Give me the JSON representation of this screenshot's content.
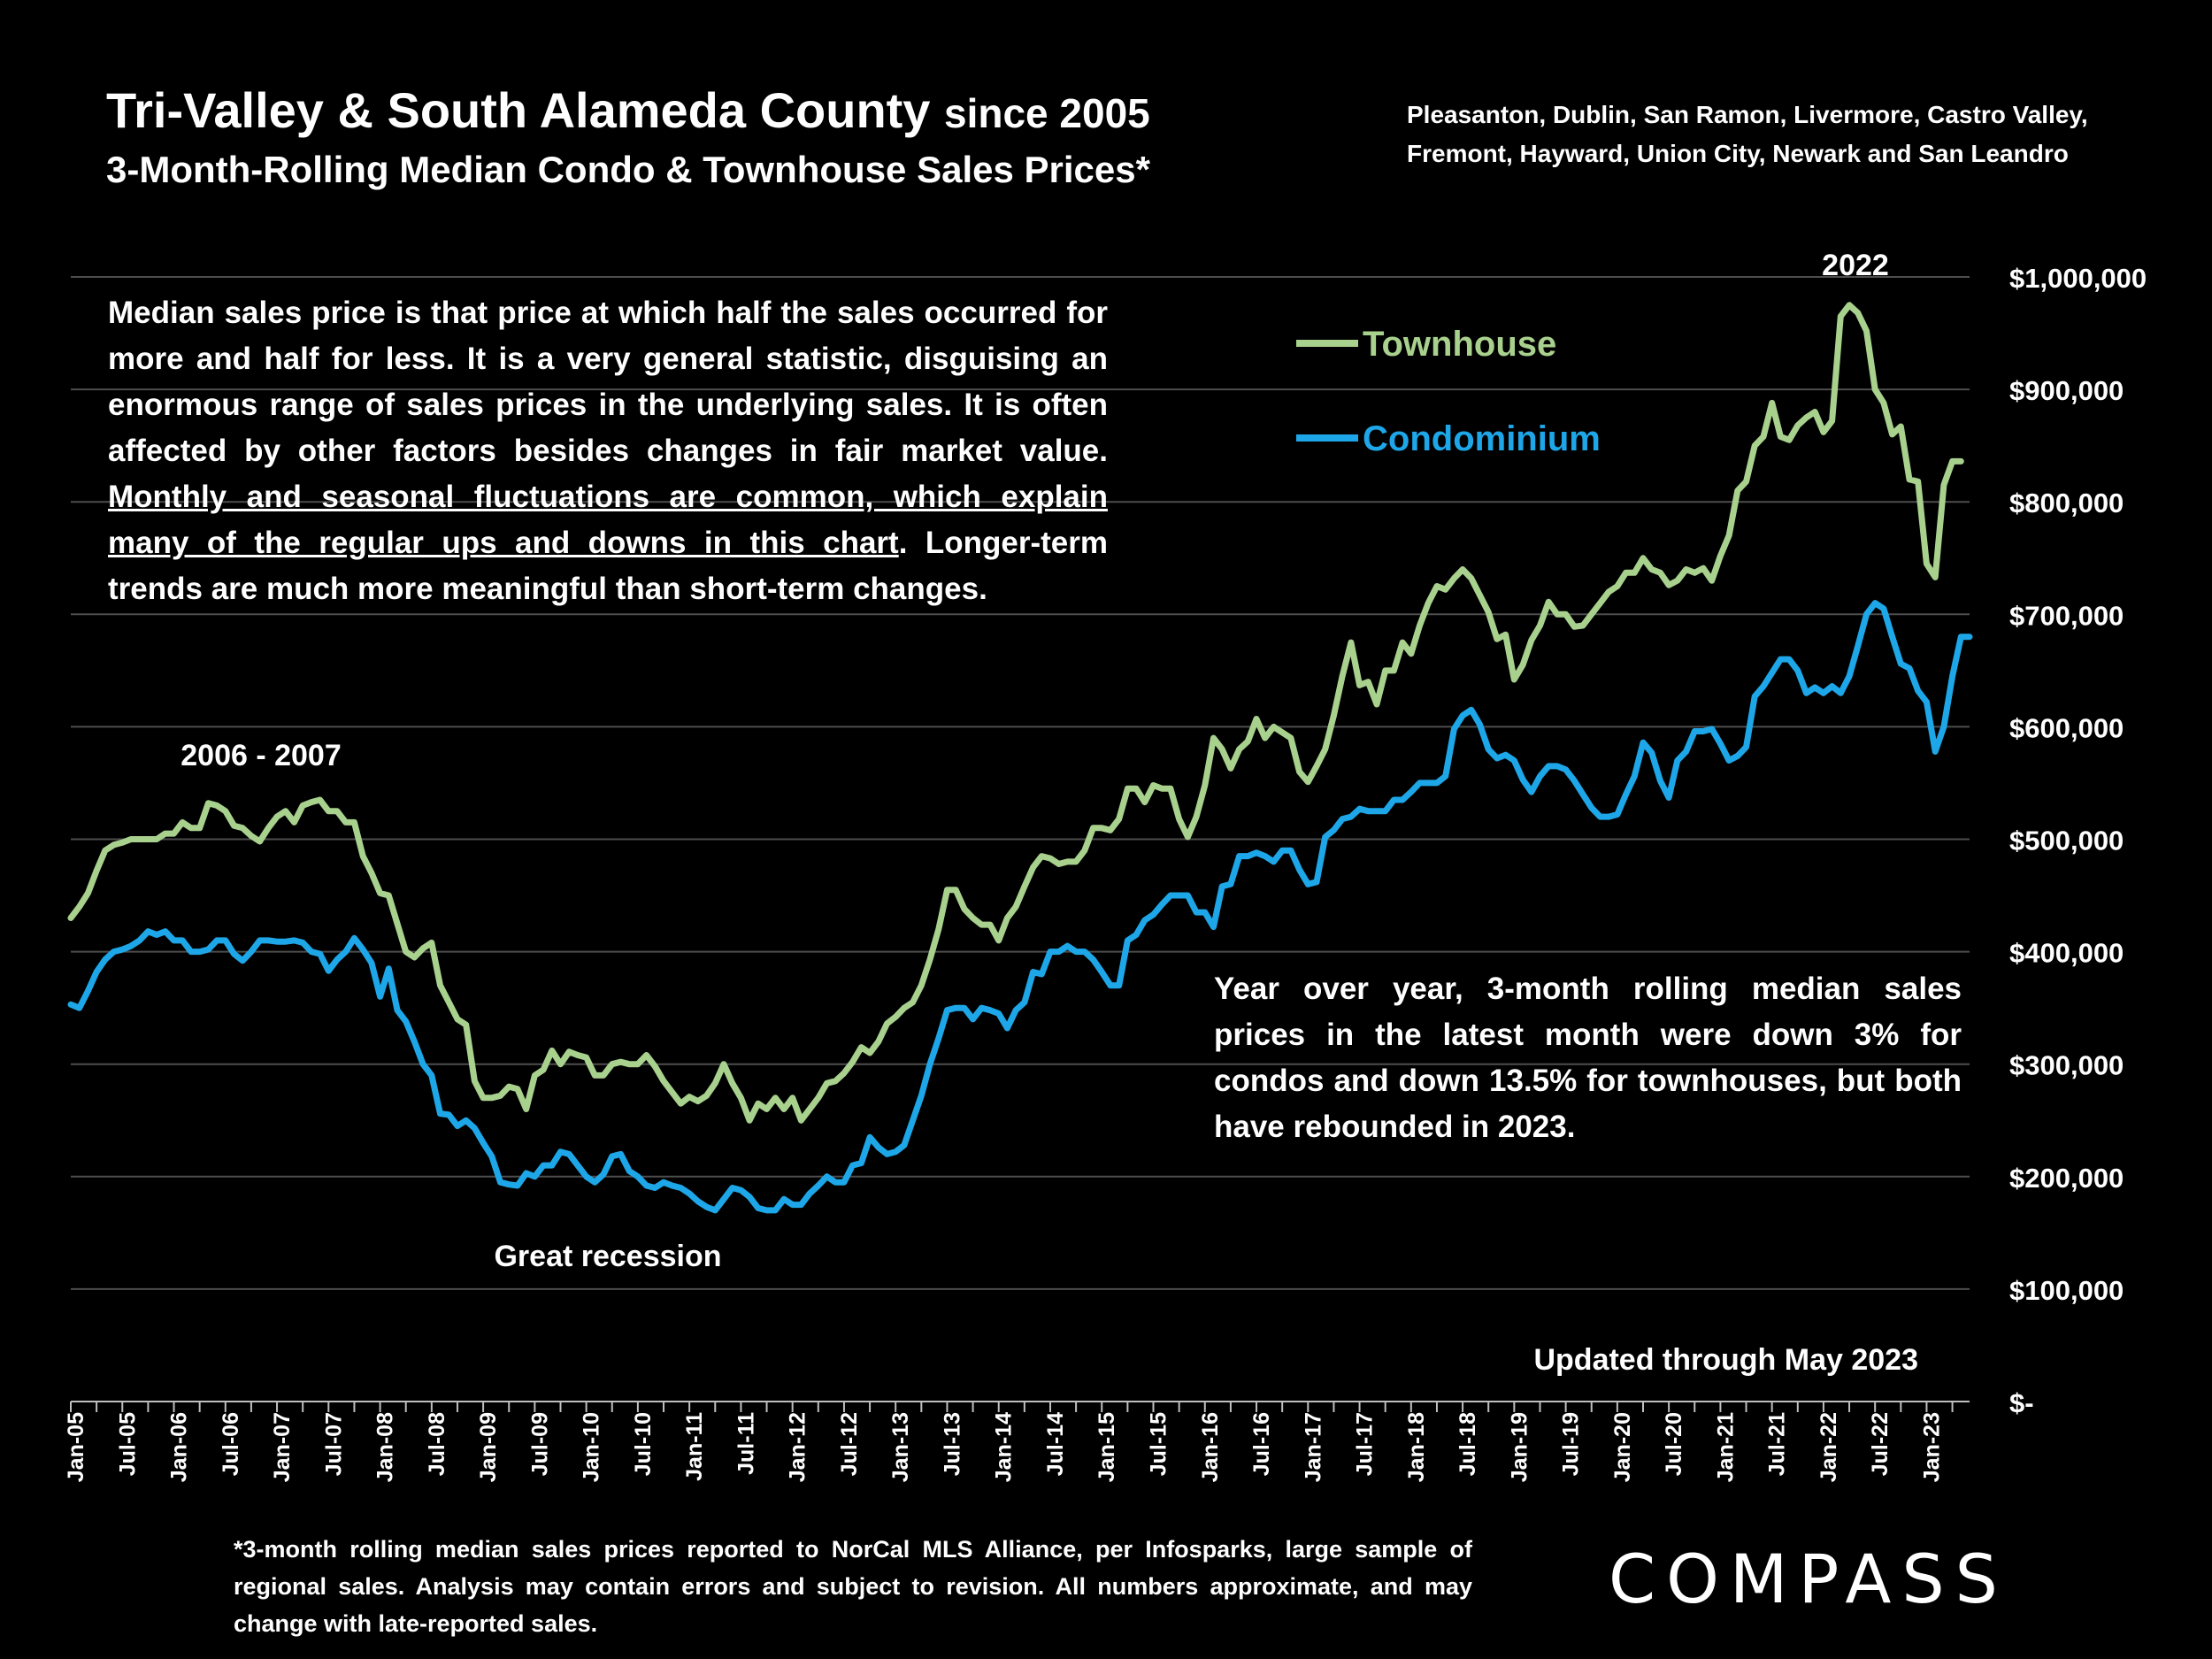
{
  "title": {
    "line1_main": "Tri-Valley & South Alameda County",
    "line1_suffix": "since 2005",
    "line2": "3-Month-Rolling Median Condo & Townhouse Sales Prices*"
  },
  "subtitle": {
    "line1": "Pleasanton, Dublin, San Ramon, Livermore, Castro Valley,",
    "line2": "Fremont, Hayward, Union City, Newark and San Leandro"
  },
  "description": {
    "part1": "Median sales price is that price at which half the sales occurred for more and half for less. It is a very general statistic, disguising an enormous range of sales prices in the underlying sales. It is often affected by other factors besides changes in fair market value. ",
    "underlined": "Monthly and seasonal fluctuations are common, which explain many of the regular ups and downs in this chart",
    "part2": ". Longer-term trends are much more meaningful than short-term changes."
  },
  "yoy_note": "Year over year, 3-month rolling median sales prices in the latest month were down 3% for condos and down 13.5% for townhouses, but both have rebounded in 2023.",
  "footnote": "*3-month rolling median sales prices reported to NorCal MLS Alliance, per Infosparks, large sample of regional sales. Analysis may contain errors and subject to revision. All numbers approximate, and may change with late-reported sales.",
  "brand": "COMPASS",
  "colors": {
    "townhouse": "#a9d18e",
    "condominium": "#1ea7e8",
    "gridline": "#4d4d4d",
    "background": "#000000"
  },
  "chart_data": {
    "type": "line",
    "x_start": "Jan-05",
    "x_end": "May-23",
    "x_tick_labels": [
      "Jan-05",
      "Jul-05",
      "Jan-06",
      "Jul-06",
      "Jan-07",
      "Jul-07",
      "Jan-08",
      "Jul-08",
      "Jan-09",
      "Jul-09",
      "Jan-10",
      "Jul-10",
      "Jan-11",
      "Jul-11",
      "Jan-12",
      "Jul-12",
      "Jan-13",
      "Jul-13",
      "Jan-14",
      "Jul-14",
      "Jan-15",
      "Jul-15",
      "Jan-16",
      "Jul-16",
      "Jan-17",
      "Jul-17",
      "Jan-18",
      "Jul-18",
      "Jan-19",
      "Jul-19",
      "Jan-20",
      "Jul-20",
      "Jan-21",
      "Jul-21",
      "Jan-22",
      "Jul-22",
      "Jan-23"
    ],
    "y_ticks": [
      0,
      100000,
      200000,
      300000,
      400000,
      500000,
      600000,
      700000,
      800000,
      900000,
      1000000
    ],
    "y_tick_labels": [
      "$-",
      "$100,000",
      "$200,000",
      "$300,000",
      "$400,000",
      "$500,000",
      "$600,000",
      "$700,000",
      "$800,000",
      "$900,000",
      "$1,000,000"
    ],
    "ylim": [
      0,
      1000000
    ],
    "grid": "horizontal",
    "legend_position": "top-right",
    "series": [
      {
        "name": "Townhouse",
        "color": "#a9d18e",
        "values": [
          430000,
          440000,
          452000,
          472000,
          490000,
          495000,
          497000,
          500000,
          500000,
          500000,
          500000,
          505000,
          505000,
          515000,
          510000,
          510000,
          532000,
          530000,
          525000,
          512000,
          510000,
          503000,
          498000,
          510000,
          520000,
          525000,
          515000,
          530000,
          533000,
          535000,
          525000,
          525000,
          515000,
          515000,
          485000,
          470000,
          452000,
          450000,
          425000,
          400000,
          395000,
          403000,
          408000,
          370000,
          355000,
          340000,
          335000,
          285000,
          270000,
          270000,
          272000,
          280000,
          278000,
          260000,
          290000,
          295000,
          312000,
          300000,
          311000,
          308000,
          306000,
          290000,
          290000,
          300000,
          302000,
          300000,
          300000,
          308000,
          298000,
          285000,
          275000,
          265000,
          271000,
          267000,
          272000,
          283000,
          300000,
          283000,
          270000,
          250000,
          265000,
          260000,
          270000,
          260000,
          270000,
          250000,
          260000,
          270000,
          283000,
          285000,
          292000,
          302000,
          315000,
          310000,
          320000,
          336000,
          342000,
          350000,
          355000,
          370000,
          393000,
          420000,
          455000,
          455000,
          438000,
          430000,
          424000,
          424000,
          410000,
          430000,
          440000,
          458000,
          475000,
          485000,
          483000,
          478000,
          480000,
          480000,
          490000,
          510000,
          510000,
          508000,
          518000,
          545000,
          545000,
          533000,
          548000,
          545000,
          545000,
          518000,
          502000,
          520000,
          548000,
          590000,
          580000,
          563000,
          580000,
          587000,
          607000,
          590000,
          600000,
          595000,
          590000,
          560000,
          551000,
          565000,
          580000,
          610000,
          645000,
          675000,
          637000,
          640000,
          620000,
          650000,
          650000,
          675000,
          665000,
          690000,
          710000,
          725000,
          722000,
          732000,
          740000,
          732000,
          717000,
          702000,
          678000,
          682000,
          642000,
          655000,
          677000,
          690000,
          711000,
          700000,
          700000,
          689000,
          690000,
          700000,
          710000,
          720000,
          725000,
          737000,
          737000,
          750000,
          740000,
          737000,
          726000,
          730000,
          740000,
          737000,
          741000,
          730000,
          752000,
          770000,
          810000,
          818000,
          850000,
          858000,
          888000,
          858000,
          855000,
          868000,
          875000,
          880000,
          862000,
          872000,
          965000,
          975000,
          968000,
          952000,
          900000,
          888000,
          860000,
          867000,
          820000,
          818000,
          745000,
          733000,
          815000,
          836000,
          836000
        ]
      },
      {
        "name": "Condominium",
        "color": "#1ea7e8",
        "values": [
          353000,
          350000,
          365000,
          382000,
          393000,
          400000,
          402000,
          405000,
          410000,
          418000,
          415000,
          418000,
          410000,
          410000,
          400000,
          400000,
          402000,
          410000,
          410000,
          398000,
          392000,
          400000,
          410000,
          410000,
          409000,
          409000,
          410000,
          408000,
          400000,
          398000,
          383000,
          393000,
          400000,
          412000,
          402000,
          390000,
          360000,
          385000,
          348000,
          338000,
          320000,
          300000,
          290000,
          256000,
          255000,
          245000,
          250000,
          243000,
          230000,
          218000,
          195000,
          193000,
          192000,
          203000,
          200000,
          210000,
          210000,
          222000,
          220000,
          210000,
          200000,
          195000,
          202000,
          218000,
          220000,
          205000,
          200000,
          192000,
          190000,
          195000,
          192000,
          190000,
          185000,
          178000,
          173000,
          170000,
          180000,
          190000,
          188000,
          182000,
          172000,
          170000,
          170000,
          180000,
          175000,
          175000,
          185000,
          192000,
          200000,
          195000,
          195000,
          210000,
          212000,
          235000,
          226000,
          220000,
          222000,
          228000,
          250000,
          272000,
          300000,
          323000,
          348000,
          350000,
          350000,
          340000,
          350000,
          348000,
          345000,
          332000,
          348000,
          355000,
          382000,
          380000,
          400000,
          400000,
          405000,
          400000,
          400000,
          393000,
          382000,
          370000,
          370000,
          410000,
          415000,
          428000,
          433000,
          442000,
          450000,
          450000,
          450000,
          435000,
          435000,
          422000,
          458000,
          460000,
          485000,
          485000,
          488000,
          485000,
          480000,
          490000,
          490000,
          473000,
          460000,
          462000,
          502000,
          508000,
          518000,
          520000,
          527000,
          525000,
          525000,
          525000,
          535000,
          535000,
          542000,
          550000,
          550000,
          550000,
          556000,
          598000,
          610000,
          615000,
          602000,
          580000,
          572000,
          575000,
          570000,
          553000,
          542000,
          556000,
          565000,
          565000,
          562000,
          552000,
          540000,
          528000,
          520000,
          520000,
          522000,
          540000,
          556000,
          586000,
          577000,
          552000,
          537000,
          570000,
          578000,
          596000,
          596000,
          598000,
          585000,
          570000,
          574000,
          582000,
          627000,
          636000,
          648000,
          660000,
          660000,
          650000,
          630000,
          635000,
          630000,
          636000,
          630000,
          645000,
          672000,
          700000,
          710000,
          705000,
          680000,
          656000,
          652000,
          632000,
          622000,
          578000,
          600000,
          645000,
          680000,
          680000
        ]
      }
    ],
    "annotations": [
      "2006 - 2007",
      "Great recession",
      "2022",
      "Updated through May 2023"
    ]
  }
}
